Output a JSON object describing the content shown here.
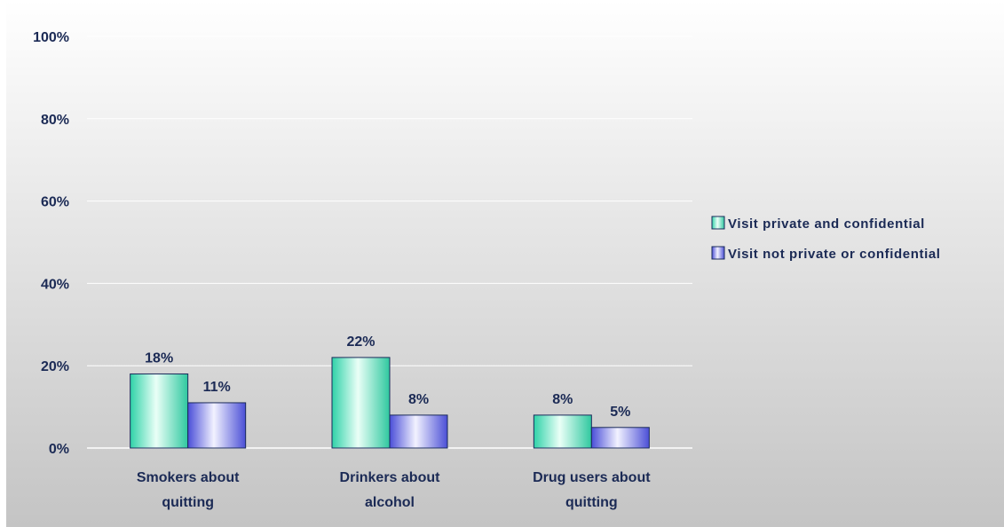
{
  "chart_data": {
    "type": "bar",
    "categories": [
      [
        "Smokers about",
        "quitting"
      ],
      [
        "Drinkers about",
        "alcohol"
      ],
      [
        "Drug users about",
        "quitting"
      ]
    ],
    "series": [
      {
        "name": "Visit private and confidential",
        "values": [
          18,
          22,
          8
        ],
        "labels": [
          "18%",
          "22%",
          "8%"
        ],
        "color": "#2fd2a8"
      },
      {
        "name": "Visit not private or confidential",
        "values": [
          11,
          8,
          5
        ],
        "labels": [
          "11%",
          "8%",
          "5%"
        ],
        "color": "#5b5fe0"
      }
    ],
    "yticks": [
      "0%",
      "20%",
      "40%",
      "60%",
      "80%",
      "100%"
    ],
    "ylim": [
      0,
      100
    ],
    "grid": true,
    "legend_position": "right",
    "title": "",
    "xlabel": "",
    "ylabel": ""
  },
  "colors": {
    "text": "#1b2a55",
    "plot_background_top": "#ffffff",
    "plot_background_bottom": "#c4c4c4",
    "bar_edge": "#1a2a5a"
  }
}
